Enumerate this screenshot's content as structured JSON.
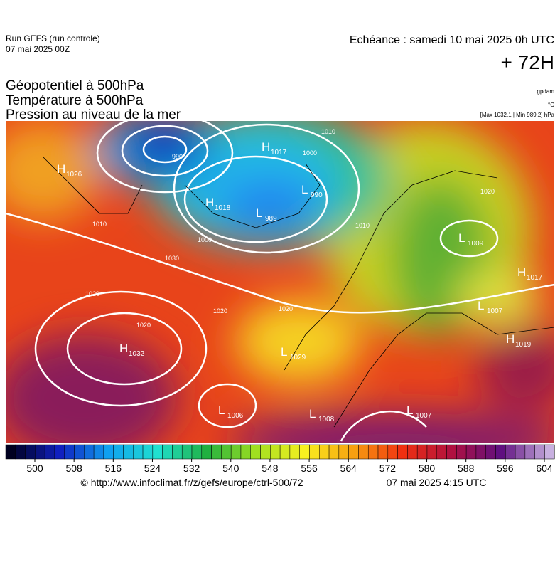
{
  "header": {
    "run": "Run GEFS (run controle)",
    "run_date": "07 mai 2025 00Z",
    "echeance": "Echéance : samedi 10 mai 2025 0h UTC",
    "lead": "+ 72H"
  },
  "titles": [
    "Géopotentiel à 500hPa",
    "Température à 500hPa",
    "Pression au niveau de la mer"
  ],
  "units": {
    "geopotential": "gpdam",
    "temperature": "°C",
    "pressure": "[Max 1032.1 | Min 989.2] hPa"
  },
  "centers": [
    {
      "letter": "H",
      "value": 1026
    },
    {
      "letter": "H",
      "value": 1017
    },
    {
      "letter": "H",
      "value": 1018
    },
    {
      "letter": "L",
      "value": 990
    },
    {
      "letter": "L",
      "value": 989
    },
    {
      "letter": "H",
      "value": 1032
    },
    {
      "letter": "L",
      "value": 1029
    },
    {
      "letter": "L",
      "value": 1006
    },
    {
      "letter": "L",
      "value": 1008
    },
    {
      "letter": "L",
      "value": 1007
    },
    {
      "letter": "L",
      "value": 1009
    },
    {
      "letter": "H",
      "value": 1017
    },
    {
      "letter": "L",
      "value": 1007
    },
    {
      "letter": "H",
      "value": 1019
    }
  ],
  "contour_labels": [
    990,
    1010,
    1000,
    1010,
    1020,
    1030,
    1020,
    1020,
    1020,
    1020,
    1000,
    1010
  ],
  "colorbar": {
    "ticks": [
      500,
      508,
      516,
      524,
      532,
      540,
      548,
      556,
      564,
      572,
      580,
      588,
      596,
      604
    ]
  },
  "footer": {
    "source": "© http://www.infoclimat.fr/z/gefs/europe/ctrl-500/72",
    "time": "07 mai 2025  4:15 UTC"
  }
}
